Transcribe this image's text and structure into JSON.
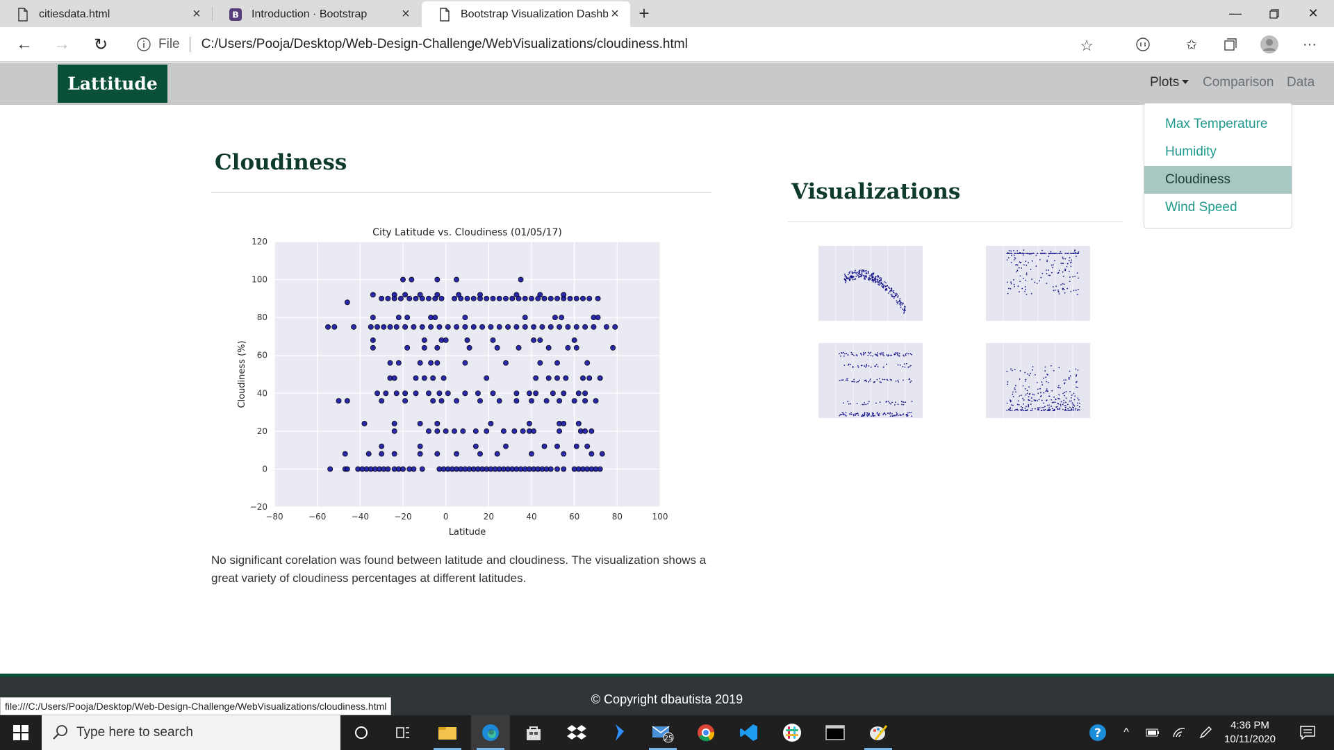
{
  "browser": {
    "tabs": [
      {
        "title": "citiesdata.html",
        "icon": "page-icon"
      },
      {
        "title": "Introduction · Bootstrap",
        "icon": "bootstrap-icon"
      },
      {
        "title": "Bootstrap Visualization Dashboa",
        "icon": "page-icon"
      }
    ],
    "address": {
      "file_label": "File",
      "url": "C:/Users/Pooja/Desktop/Web-Design-Challenge/WebVisualizations/cloudiness.html"
    },
    "status_url": "file:///C:/Users/Pooja/Desktop/Web-Design-Challenge/WebVisualizations/cloudiness.html"
  },
  "navbar": {
    "brand": "Lattitude",
    "links": {
      "plots": "Plots",
      "comparison": "Comparison",
      "data": "Data"
    },
    "dropdown": [
      "Max Temperature",
      "Humidity",
      "Cloudiness",
      "Wind Speed"
    ],
    "active_item": "Cloudiness"
  },
  "main": {
    "heading": "Cloudiness",
    "description": "No significant corelation was found between latitude and cloudiness. The visualization shows a great variety of cloudiness percentages at different latitudes."
  },
  "sidebar": {
    "heading": "Visualizations",
    "thumbnails": [
      "max-temperature-plot",
      "humidity-plot",
      "cloudiness-plot",
      "wind-speed-plot"
    ]
  },
  "footer": {
    "text": "© Copyright dbautista 2019"
  },
  "taskbar": {
    "search_placeholder": "Type here to search",
    "mail_badge": "25",
    "time": "4:36 PM",
    "date": "10/11/2020"
  },
  "colors": {
    "brand": "#0a4f3a",
    "link": "#1f9a8c",
    "point": "#0b0b7a",
    "plot_bg": "#eaeaf2"
  },
  "chart_data": {
    "type": "scatter",
    "title": "City Latitude vs. Cloudiness (01/05/17)",
    "xlabel": "Latitude",
    "ylabel": "Cloudiness (%)",
    "xlim": [
      -80,
      100
    ],
    "ylim": [
      -20,
      120
    ],
    "xticks": [
      -80,
      -60,
      -40,
      -20,
      0,
      20,
      40,
      60,
      80,
      100
    ],
    "yticks": [
      -20,
      0,
      20,
      40,
      60,
      80,
      100,
      120
    ],
    "grid": true,
    "points": [
      [
        -54,
        0
      ],
      [
        -47,
        0
      ],
      [
        -46,
        0
      ],
      [
        -41,
        0
      ],
      [
        -39,
        0
      ],
      [
        -37,
        0
      ],
      [
        -35,
        0
      ],
      [
        -33,
        0
      ],
      [
        -31,
        0
      ],
      [
        -29,
        0
      ],
      [
        -27,
        0
      ],
      [
        -24,
        0
      ],
      [
        -22,
        0
      ],
      [
        -20,
        0
      ],
      [
        -17,
        0
      ],
      [
        -15,
        0
      ],
      [
        -11,
        0
      ],
      [
        -3,
        0
      ],
      [
        -1,
        0
      ],
      [
        1,
        0
      ],
      [
        3,
        0
      ],
      [
        5,
        0
      ],
      [
        7,
        0
      ],
      [
        9,
        0
      ],
      [
        11,
        0
      ],
      [
        13,
        0
      ],
      [
        15,
        0
      ],
      [
        17,
        0
      ],
      [
        19,
        0
      ],
      [
        21,
        0
      ],
      [
        23,
        0
      ],
      [
        25,
        0
      ],
      [
        27,
        0
      ],
      [
        29,
        0
      ],
      [
        31,
        0
      ],
      [
        33,
        0
      ],
      [
        35,
        0
      ],
      [
        37,
        0
      ],
      [
        39,
        0
      ],
      [
        41,
        0
      ],
      [
        43,
        0
      ],
      [
        45,
        0
      ],
      [
        47,
        0
      ],
      [
        49,
        0
      ],
      [
        52,
        0
      ],
      [
        55,
        0
      ],
      [
        60,
        0
      ],
      [
        62,
        0
      ],
      [
        64,
        0
      ],
      [
        66,
        0
      ],
      [
        68,
        0
      ],
      [
        70,
        0
      ],
      [
        72,
        0
      ],
      [
        -47,
        8
      ],
      [
        -36,
        8
      ],
      [
        -30,
        8
      ],
      [
        -24,
        8
      ],
      [
        -12,
        8
      ],
      [
        -4,
        8
      ],
      [
        5,
        8
      ],
      [
        16,
        8
      ],
      [
        24,
        8
      ],
      [
        40,
        8
      ],
      [
        55,
        8
      ],
      [
        68,
        8
      ],
      [
        73,
        8
      ],
      [
        -30,
        12
      ],
      [
        -12,
        12
      ],
      [
        14,
        12
      ],
      [
        28,
        12
      ],
      [
        46,
        12
      ],
      [
        52,
        12
      ],
      [
        61,
        12
      ],
      [
        66,
        12
      ],
      [
        -38,
        24
      ],
      [
        -24,
        24
      ],
      [
        -12,
        24
      ],
      [
        -4,
        24
      ],
      [
        21,
        24
      ],
      [
        39,
        24
      ],
      [
        53,
        24
      ],
      [
        55,
        24
      ],
      [
        62,
        24
      ],
      [
        -24,
        20
      ],
      [
        -8,
        20
      ],
      [
        -4,
        20
      ],
      [
        0,
        20
      ],
      [
        4,
        20
      ],
      [
        8,
        20
      ],
      [
        14,
        20
      ],
      [
        19,
        20
      ],
      [
        27,
        20
      ],
      [
        32,
        20
      ],
      [
        36,
        20
      ],
      [
        39,
        20
      ],
      [
        41,
        20
      ],
      [
        53,
        20
      ],
      [
        63,
        20
      ],
      [
        65,
        20
      ],
      [
        68,
        20
      ],
      [
        -50,
        36
      ],
      [
        -46,
        36
      ],
      [
        -30,
        36
      ],
      [
        -19,
        36
      ],
      [
        -6,
        36
      ],
      [
        -2,
        36
      ],
      [
        5,
        36
      ],
      [
        16,
        36
      ],
      [
        25,
        36
      ],
      [
        33,
        36
      ],
      [
        40,
        36
      ],
      [
        47,
        36
      ],
      [
        53,
        36
      ],
      [
        60,
        36
      ],
      [
        65,
        36
      ],
      [
        70,
        36
      ],
      [
        -32,
        40
      ],
      [
        -28,
        40
      ],
      [
        -23,
        40
      ],
      [
        -19,
        40
      ],
      [
        -14,
        40
      ],
      [
        -8,
        40
      ],
      [
        -3,
        40
      ],
      [
        1,
        40
      ],
      [
        9,
        40
      ],
      [
        15,
        40
      ],
      [
        22,
        40
      ],
      [
        33,
        40
      ],
      [
        39,
        40
      ],
      [
        42,
        40
      ],
      [
        50,
        40
      ],
      [
        55,
        40
      ],
      [
        62,
        40
      ],
      [
        65,
        40
      ],
      [
        -26,
        48
      ],
      [
        -24,
        48
      ],
      [
        -14,
        48
      ],
      [
        -10,
        48
      ],
      [
        -6,
        48
      ],
      [
        -1,
        48
      ],
      [
        19,
        48
      ],
      [
        42,
        48
      ],
      [
        48,
        48
      ],
      [
        52,
        48
      ],
      [
        56,
        48
      ],
      [
        64,
        48
      ],
      [
        67,
        48
      ],
      [
        72,
        48
      ],
      [
        -26,
        56
      ],
      [
        -22,
        56
      ],
      [
        -12,
        56
      ],
      [
        -7,
        56
      ],
      [
        -4,
        56
      ],
      [
        9,
        56
      ],
      [
        28,
        56
      ],
      [
        44,
        56
      ],
      [
        52,
        56
      ],
      [
        66,
        56
      ],
      [
        -34,
        64
      ],
      [
        -18,
        64
      ],
      [
        -10,
        64
      ],
      [
        -4,
        64
      ],
      [
        11,
        64
      ],
      [
        24,
        64
      ],
      [
        34,
        64
      ],
      [
        48,
        64
      ],
      [
        57,
        64
      ],
      [
        61,
        64
      ],
      [
        78,
        64
      ],
      [
        -34,
        68
      ],
      [
        -10,
        68
      ],
      [
        -2,
        68
      ],
      [
        0,
        68
      ],
      [
        10,
        68
      ],
      [
        22,
        68
      ],
      [
        41,
        68
      ],
      [
        44,
        68
      ],
      [
        60,
        68
      ],
      [
        -55,
        75
      ],
      [
        -52,
        75
      ],
      [
        -43,
        75
      ],
      [
        -35,
        75
      ],
      [
        -32,
        75
      ],
      [
        -29,
        75
      ],
      [
        -26,
        75
      ],
      [
        -23,
        75
      ],
      [
        -19,
        75
      ],
      [
        -15,
        75
      ],
      [
        -11,
        75
      ],
      [
        -7,
        75
      ],
      [
        -3,
        75
      ],
      [
        1,
        75
      ],
      [
        5,
        75
      ],
      [
        9,
        75
      ],
      [
        13,
        75
      ],
      [
        17,
        75
      ],
      [
        21,
        75
      ],
      [
        25,
        75
      ],
      [
        29,
        75
      ],
      [
        33,
        75
      ],
      [
        37,
        75
      ],
      [
        41,
        75
      ],
      [
        45,
        75
      ],
      [
        49,
        75
      ],
      [
        53,
        75
      ],
      [
        57,
        75
      ],
      [
        61,
        75
      ],
      [
        65,
        75
      ],
      [
        69,
        75
      ],
      [
        75,
        75
      ],
      [
        79,
        75
      ],
      [
        -34,
        80
      ],
      [
        -22,
        80
      ],
      [
        -18,
        80
      ],
      [
        -7,
        80
      ],
      [
        -5,
        80
      ],
      [
        9,
        80
      ],
      [
        37,
        80
      ],
      [
        51,
        80
      ],
      [
        54,
        80
      ],
      [
        69,
        80
      ],
      [
        71,
        80
      ],
      [
        -46,
        88
      ],
      [
        -30,
        90
      ],
      [
        -27,
        90
      ],
      [
        -24,
        90
      ],
      [
        -21,
        90
      ],
      [
        -17,
        90
      ],
      [
        -14,
        90
      ],
      [
        -11,
        90
      ],
      [
        -8,
        90
      ],
      [
        -5,
        90
      ],
      [
        -2,
        90
      ],
      [
        4,
        90
      ],
      [
        7,
        90
      ],
      [
        10,
        90
      ],
      [
        13,
        90
      ],
      [
        16,
        90
      ],
      [
        19,
        90
      ],
      [
        22,
        90
      ],
      [
        25,
        90
      ],
      [
        28,
        90
      ],
      [
        31,
        90
      ],
      [
        34,
        90
      ],
      [
        37,
        90
      ],
      [
        40,
        90
      ],
      [
        43,
        90
      ],
      [
        46,
        90
      ],
      [
        49,
        90
      ],
      [
        52,
        90
      ],
      [
        55,
        90
      ],
      [
        58,
        90
      ],
      [
        61,
        90
      ],
      [
        64,
        90
      ],
      [
        67,
        90
      ],
      [
        71,
        90
      ],
      [
        -34,
        92
      ],
      [
        -24,
        92
      ],
      [
        -19,
        92
      ],
      [
        -12,
        92
      ],
      [
        -4,
        92
      ],
      [
        6,
        92
      ],
      [
        16,
        92
      ],
      [
        33,
        92
      ],
      [
        44,
        92
      ],
      [
        55,
        92
      ],
      [
        -20,
        100
      ],
      [
        -16,
        100
      ],
      [
        -4,
        100
      ],
      [
        5,
        100
      ],
      [
        35,
        100
      ]
    ]
  }
}
